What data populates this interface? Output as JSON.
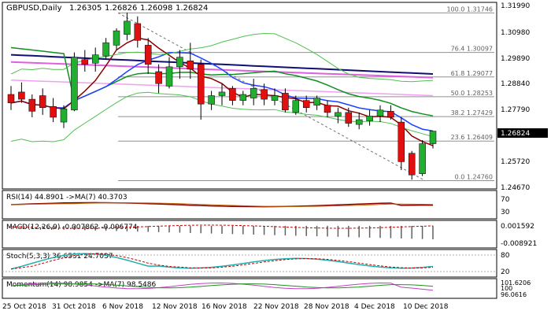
{
  "main": {
    "title": "GBPUSD,Daily",
    "ohlc": [
      "1.26305",
      "1.26826",
      "1.26098",
      "1.26824"
    ],
    "price_ticks": [
      "1.31990",
      "1.30980",
      "1.29890",
      "1.28840",
      "1.27790",
      "1.26824",
      "1.25720",
      "1.24670"
    ],
    "current_price": "1.26824",
    "fib_levels": [
      {
        "label": "100.0 1.31746",
        "value": 1.31746
      },
      {
        "label": "76.4 1.30097",
        "value": 1.30097
      },
      {
        "label": "61.8 1.29077",
        "value": 1.29077
      },
      {
        "label": "50.0 1.28253",
        "value": 1.28253
      },
      {
        "label": "38.2 1.27429",
        "value": 1.27429
      },
      {
        "label": "23.6 1.26409",
        "value": 1.26409
      },
      {
        "label": "0.0 1.24760",
        "value": 1.2476
      }
    ]
  },
  "rsi": {
    "label": "RSI(14) 44.8901 ->MA(7) 40.3703",
    "ticks": [
      "70",
      "30"
    ]
  },
  "macd": {
    "label": "MACD(12,26,9) -0.007862 -0.006774",
    "ticks": [
      "0.001592",
      "-0.008921"
    ]
  },
  "stoch": {
    "label": "Stoch(5,3,3) 36.6531 24.7037",
    "ticks": [
      "80",
      "20"
    ]
  },
  "momentum": {
    "label": "Momentum(14) 98.9854 ->MA(7) 98.5486",
    "ticks": [
      "101.6206",
      "100",
      "96.0616"
    ]
  },
  "dates": [
    "25 Oct 2018",
    "31 Oct 2018",
    "6 Nov 2018",
    "12 Nov 2018",
    "16 Nov 2018",
    "22 Nov 2018",
    "28 Nov 2018",
    "4 Dec 2018",
    "10 Dec 2018"
  ],
  "colors": {
    "up": "#20b030",
    "down": "#e01010",
    "ma_dark_red": "#8b0000",
    "ma_blue": "#1e40ff",
    "ma_green": "#109020",
    "ma_navy": "#101070",
    "ma_pink": "#e060e0",
    "ma_light_pink": "#f0a0f0",
    "bollinger": "#50c050",
    "signal": "#c00000",
    "stoch_main": "#20b0b0"
  },
  "chart_data": {
    "type": "candlestick",
    "title": "GBPUSD,Daily",
    "ylim": [
      1.2445,
      1.3215
    ],
    "candles": [
      {
        "o": 1.2835,
        "h": 1.287,
        "l": 1.277,
        "c": 1.28
      },
      {
        "o": 1.2845,
        "h": 1.2885,
        "l": 1.28,
        "c": 1.2815
      },
      {
        "o": 1.2815,
        "h": 1.2835,
        "l": 1.274,
        "c": 1.2765
      },
      {
        "o": 1.283,
        "h": 1.286,
        "l": 1.275,
        "c": 1.278
      },
      {
        "o": 1.2785,
        "h": 1.282,
        "l": 1.272,
        "c": 1.274
      },
      {
        "o": 1.272,
        "h": 1.279,
        "l": 1.2695,
        "c": 1.2775
      },
      {
        "o": 1.277,
        "h": 1.301,
        "l": 1.2765,
        "c": 1.299
      },
      {
        "o": 1.298,
        "h": 1.302,
        "l": 1.293,
        "c": 1.296
      },
      {
        "o": 1.2965,
        "h": 1.303,
        "l": 1.293,
        "c": 1.3
      },
      {
        "o": 1.2995,
        "h": 1.307,
        "l": 1.298,
        "c": 1.305
      },
      {
        "o": 1.304,
        "h": 1.311,
        "l": 1.302,
        "c": 1.31
      },
      {
        "o": 1.3085,
        "h": 1.3175,
        "l": 1.306,
        "c": 1.314
      },
      {
        "o": 1.313,
        "h": 1.316,
        "l": 1.303,
        "c": 1.306
      },
      {
        "o": 1.304,
        "h": 1.307,
        "l": 1.292,
        "c": 1.296
      },
      {
        "o": 1.293,
        "h": 1.296,
        "l": 1.284,
        "c": 1.288
      },
      {
        "o": 1.287,
        "h": 1.299,
        "l": 1.286,
        "c": 1.295
      },
      {
        "o": 1.295,
        "h": 1.302,
        "l": 1.29,
        "c": 1.299
      },
      {
        "o": 1.2975,
        "h": 1.305,
        "l": 1.29,
        "c": 1.294
      },
      {
        "o": 1.296,
        "h": 1.298,
        "l": 1.273,
        "c": 1.2795
      },
      {
        "o": 1.2795,
        "h": 1.285,
        "l": 1.277,
        "c": 1.283
      },
      {
        "o": 1.283,
        "h": 1.288,
        "l": 1.279,
        "c": 1.2845
      },
      {
        "o": 1.286,
        "h": 1.287,
        "l": 1.279,
        "c": 1.281
      },
      {
        "o": 1.281,
        "h": 1.285,
        "l": 1.279,
        "c": 1.2835
      },
      {
        "o": 1.282,
        "h": 1.29,
        "l": 1.279,
        "c": 1.286
      },
      {
        "o": 1.2855,
        "h": 1.288,
        "l": 1.279,
        "c": 1.2815
      },
      {
        "o": 1.281,
        "h": 1.286,
        "l": 1.279,
        "c": 1.283
      },
      {
        "o": 1.284,
        "h": 1.286,
        "l": 1.276,
        "c": 1.277
      },
      {
        "o": 1.276,
        "h": 1.283,
        "l": 1.275,
        "c": 1.281
      },
      {
        "o": 1.281,
        "h": 1.283,
        "l": 1.276,
        "c": 1.278
      },
      {
        "o": 1.279,
        "h": 1.283,
        "l": 1.277,
        "c": 1.282
      },
      {
        "o": 1.279,
        "h": 1.281,
        "l": 1.274,
        "c": 1.276
      },
      {
        "o": 1.2745,
        "h": 1.278,
        "l": 1.2715,
        "c": 1.276
      },
      {
        "o": 1.276,
        "h": 1.278,
        "l": 1.27,
        "c": 1.2715
      },
      {
        "o": 1.271,
        "h": 1.276,
        "l": 1.269,
        "c": 1.273
      },
      {
        "o": 1.2725,
        "h": 1.277,
        "l": 1.2705,
        "c": 1.2745
      },
      {
        "o": 1.2745,
        "h": 1.279,
        "l": 1.272,
        "c": 1.277
      },
      {
        "o": 1.2765,
        "h": 1.279,
        "l": 1.273,
        "c": 1.274
      },
      {
        "o": 1.272,
        "h": 1.274,
        "l": 1.252,
        "c": 1.2555
      },
      {
        "o": 1.259,
        "h": 1.26,
        "l": 1.248,
        "c": 1.25
      },
      {
        "o": 1.2505,
        "h": 1.2645,
        "l": 1.2495,
        "c": 1.263
      },
      {
        "o": 1.263,
        "h": 1.2683,
        "l": 1.261,
        "c": 1.26824
      }
    ]
  }
}
